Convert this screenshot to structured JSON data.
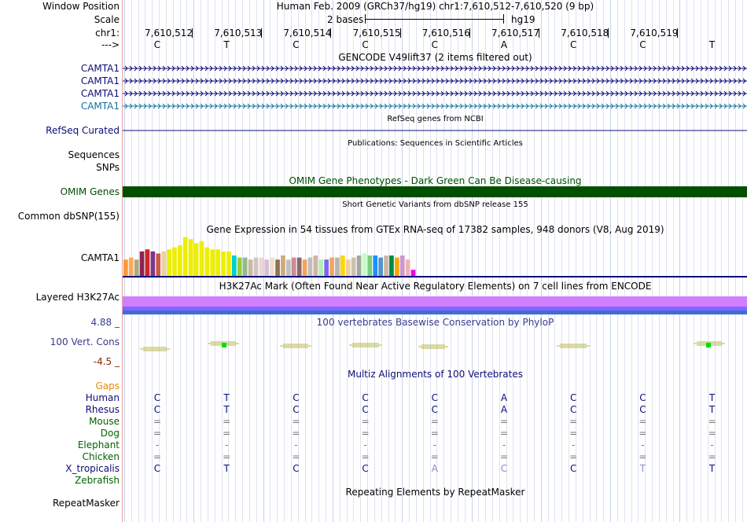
{
  "header": {
    "window_position_label": "Window Position",
    "scale_label": "Scale",
    "chrom_label": "chr1:",
    "strand_label": "--->",
    "position_text": "Human Feb. 2009 (GRCh37/hg19)   chr1:7,610,512-7,610,520 (9 bp)",
    "scale_bar_text": "2 bases",
    "scale_db": "hg19",
    "coordinates": [
      "7,610,512",
      "7,610,513",
      "7,610,514",
      "7,610,515",
      "7,610,516",
      "7,610,517",
      "7,610,518",
      "7,610,519"
    ],
    "sequence": [
      "C",
      "T",
      "C",
      "C",
      "C",
      "A",
      "C",
      "C",
      "T"
    ]
  },
  "tracks": {
    "gencode": {
      "title": "GENCODE V49lift37 (2 items filtered out)",
      "items": [
        "CAMTA1",
        "CAMTA1",
        "CAMTA1",
        "CAMTA1"
      ],
      "colors": [
        "#0c0c78",
        "#0c0c78",
        "#0c0c78",
        "#1a73a0"
      ]
    },
    "refseq": {
      "label": "RefSeq Curated",
      "title": "RefSeq genes from NCBI",
      "color": "#0c0c78"
    },
    "publications": {
      "title": "Publications: Sequences in Scientific Articles",
      "labels": [
        "Sequences",
        "SNPs"
      ]
    },
    "omim": {
      "label": "OMIM Genes",
      "title": "OMIM Gene Phenotypes - Dark Green Can Be Disease-causing",
      "color": "#005000"
    },
    "dbsnp": {
      "label": "Common dbSNP(155)",
      "title": "Short Genetic Variants from dbSNP release 155"
    },
    "gtex": {
      "label": "CAMTA1",
      "title": "Gene Expression in 54 tissues from GTEx RNA-seq of 17382 samples, 948 donors (V8, Aug 2019)",
      "values": [
        8,
        9,
        8,
        12,
        13,
        12,
        11,
        12,
        13,
        14,
        15,
        19,
        18,
        16,
        17,
        14,
        13,
        13,
        12,
        12,
        10,
        9,
        9,
        8,
        9,
        9,
        8,
        9,
        8,
        10,
        8,
        9,
        9,
        8,
        9,
        10,
        8,
        8,
        9,
        9,
        10,
        8,
        9,
        10,
        11,
        10,
        10,
        9,
        10,
        10,
        9,
        10,
        8,
        3
      ],
      "colors": [
        "#ff9933",
        "#ffa955",
        "#aaaa7f",
        "#8b2252",
        "#cd2626",
        "#7a378b",
        "#cd5b45",
        "#eecfa1",
        "#eeee00",
        "#eeee00",
        "#eeee00",
        "#eeee00",
        "#eeee00",
        "#eeee00",
        "#eeee00",
        "#eeee00",
        "#eeee00",
        "#eeee00",
        "#eeee00",
        "#eeee00",
        "#00ced1",
        "#9acd32",
        "#8fbc8f",
        "#cdb79e",
        "#cdc5bf",
        "#eed5d2",
        "#d8bfd8",
        "#eedfcc",
        "#8b7355",
        "#cdaa7d",
        "#c0c0c0",
        "#cd8c95",
        "#8b6969",
        "#f4a460",
        "#bebebe",
        "#cdb79e",
        "#b4eeb4",
        "#7b68ee",
        "#f4a460",
        "#b5b5b5",
        "#ffd700",
        "#eecfa1",
        "#cdc0b0",
        "#a6a6a6",
        "#c1ffc1",
        "#7ccd7c",
        "#1e90ff",
        "#4f94cd",
        "#cdb79e",
        "#008b45",
        "#ffa500",
        "#cd96cd",
        "#eeb4b4",
        "#ee00ee"
      ]
    },
    "h3k27ac": {
      "label": "Layered H3K27Ac",
      "title": "H3K27Ac Mark (Often Found Near Active Regulatory Elements) on 7 cell lines from ENCODE",
      "colors": [
        "#d07fff",
        "#8066ff",
        "#3c6fd2"
      ]
    },
    "phylop": {
      "label": "100 Vert. Cons",
      "title": "100 vertebrates Basewise Conservation by PhyloP",
      "max": "4.88 _",
      "min": "-4.5 _"
    },
    "multiz": {
      "title": "Multiz Alignments of 100 Vertebrates",
      "gaps_label": "Gaps",
      "species": [
        {
          "name": "Human",
          "color": "#0c0c78",
          "bases": [
            "C",
            "T",
            "C",
            "C",
            "C",
            "A",
            "C",
            "C",
            "T"
          ]
        },
        {
          "name": "Rhesus",
          "color": "#0c0c78",
          "bases": [
            "C",
            "T",
            "C",
            "C",
            "C",
            "A",
            "C",
            "C",
            "T"
          ]
        },
        {
          "name": "Mouse",
          "color": "#006400",
          "bases": [
            "=",
            "=",
            "=",
            "=",
            "=",
            "=",
            "=",
            "=",
            "="
          ]
        },
        {
          "name": "Dog",
          "color": "#006400",
          "bases": [
            "=",
            "=",
            "=",
            "=",
            "=",
            "=",
            "=",
            "=",
            "="
          ]
        },
        {
          "name": "Elephant",
          "color": "#006400",
          "bases": [
            "-",
            "-",
            "-",
            "-",
            "-",
            "-",
            "-",
            "-",
            "-"
          ]
        },
        {
          "name": "Chicken",
          "color": "#006400",
          "bases": [
            "=",
            "=",
            "=",
            "=",
            "=",
            "=",
            "=",
            "=",
            "="
          ]
        },
        {
          "name": "X_tropicalis",
          "color": "#0c0c78",
          "bases": [
            "C",
            "T",
            "C",
            "C",
            "A",
            "C",
            "C",
            "T",
            "T"
          ]
        },
        {
          "name": "Zebrafish",
          "color": "#006400",
          "bases": [
            "",
            "",
            "",
            "",
            "",
            "",
            "",
            "",
            ""
          ]
        }
      ]
    },
    "repeatmasker": {
      "label": "RepeatMasker",
      "title": "Repeating Elements by RepeatMasker"
    }
  }
}
